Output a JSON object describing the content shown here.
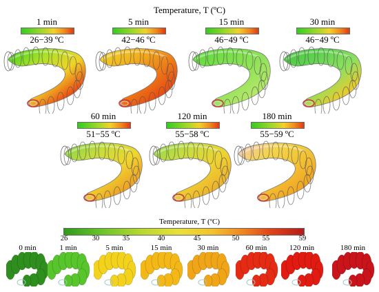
{
  "top_title": "Temperature, T (ºC)",
  "colors": {
    "1min": [
      "#34d016",
      "#ade12a",
      "#f0d428",
      "#ec4b14",
      "#cc1f1f"
    ],
    "5min": [
      "#efd62b",
      "#f2b11f",
      "#ef7f17",
      "#e84a12",
      "#d32b2b"
    ],
    "15min": [
      "#5bd93b",
      "#79df4a",
      "#93e25a",
      "#b5e86a",
      "#68d93e"
    ],
    "30min": [
      "#45c53f",
      "#63d452",
      "#8de05f",
      "#f0c92b",
      "#d92c2c"
    ],
    "60min": [
      "#7ed445",
      "#c6dd3c",
      "#f0d52f",
      "#eda025",
      "#e23a47"
    ],
    "120min": [
      "#8ed848",
      "#c9dc3f",
      "#efd332",
      "#edb12c",
      "#e44f51"
    ],
    "180min": [
      "#f5c6c0",
      "#f3d44a",
      "#f2c235",
      "#f1a523",
      "#e65e58"
    ]
  },
  "panels": [
    {
      "time": "1 min",
      "range": "26−39 ºC",
      "scheme": "1min"
    },
    {
      "time": "5 min",
      "range": "42−46 ºC",
      "scheme": "5min"
    },
    {
      "time": "15 min",
      "range": "46−49 ºC",
      "scheme": "15min"
    },
    {
      "time": "30 min",
      "range": "46−49 ºC",
      "scheme": "30min"
    },
    {
      "time": "60 min",
      "range": "51−55 ºC",
      "scheme": "60min"
    },
    {
      "time": "120 min",
      "range": "55−58 ºC",
      "scheme": "120min"
    },
    {
      "time": "180 min",
      "range": "55−59 ºC",
      "scheme": "180min"
    }
  ],
  "bottom": {
    "title": "Temperature, T (ºC)",
    "ticks": [
      "26",
      "30",
      "35",
      "40",
      "45",
      "50",
      "55",
      "59"
    ],
    "times": [
      "0 min",
      "1 min",
      "5 min",
      "15 min",
      "30 min",
      "60 min",
      "120 min",
      "180 min"
    ],
    "thumb_colors": [
      "#2f8f1e",
      "#57c52b",
      "#f2d21c",
      "#f3b817",
      "#f0a518",
      "#e52b14",
      "#e11a12",
      "#c8141a"
    ]
  }
}
